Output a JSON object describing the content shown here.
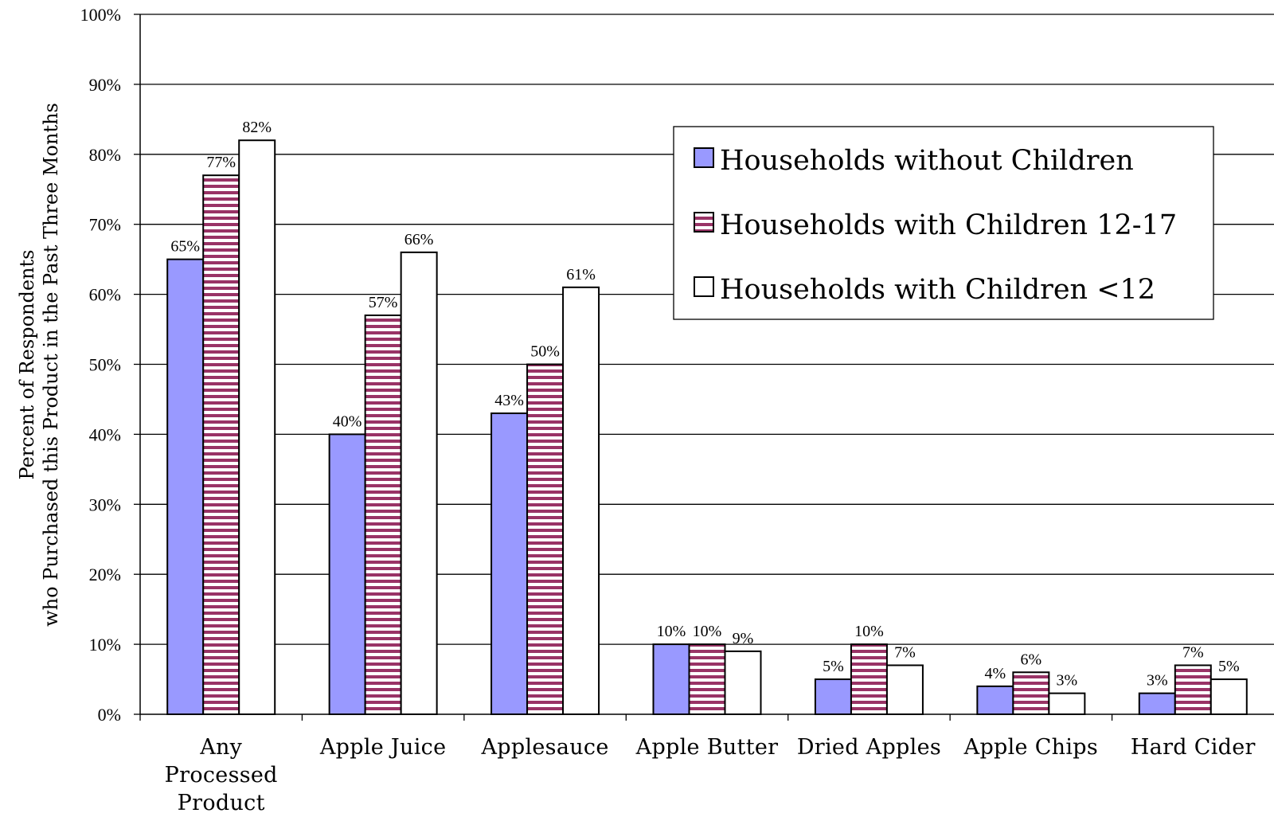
{
  "chart_data": {
    "type": "bar",
    "title": "",
    "xlabel": "",
    "ylabel": [
      "Percent of Respondents",
      "who Purchased this Product in the Past Three Months"
    ],
    "ylim": [
      0,
      100
    ],
    "yticks": [
      "0%",
      "10%",
      "20%",
      "30%",
      "40%",
      "50%",
      "60%",
      "70%",
      "80%",
      "90%",
      "100%"
    ],
    "grid": true,
    "legend_position": "top-right",
    "categories": [
      [
        "Any",
        "Processed",
        "Product"
      ],
      [
        "Apple Juice"
      ],
      [
        "Applesauce"
      ],
      [
        "Apple Butter"
      ],
      [
        "Dried Apples"
      ],
      [
        "Apple Chips"
      ],
      [
        "Hard Cider"
      ]
    ],
    "series": [
      {
        "name": "Households without Children",
        "values": [
          65,
          40,
          43,
          10,
          5,
          4,
          3
        ],
        "labels": [
          "65%",
          "40%",
          "43%",
          "10%",
          "5%",
          "4%",
          "3%"
        ],
        "fill": "#9999ff",
        "pattern": "solid"
      },
      {
        "name": "Households with Children 12-17",
        "values": [
          77,
          57,
          50,
          10,
          10,
          6,
          7
        ],
        "labels": [
          "77%",
          "57%",
          "50%",
          "10%",
          "10%",
          "6%",
          "7%"
        ],
        "fill": "#993366",
        "pattern": "horizontal-stripes"
      },
      {
        "name": "Households with Children <12",
        "values": [
          82,
          66,
          61,
          9,
          7,
          3,
          5
        ],
        "labels": [
          "82%",
          "66%",
          "61%",
          "9%",
          "7%",
          "3%",
          "5%"
        ],
        "fill": "#ffffff",
        "pattern": "solid"
      }
    ]
  }
}
